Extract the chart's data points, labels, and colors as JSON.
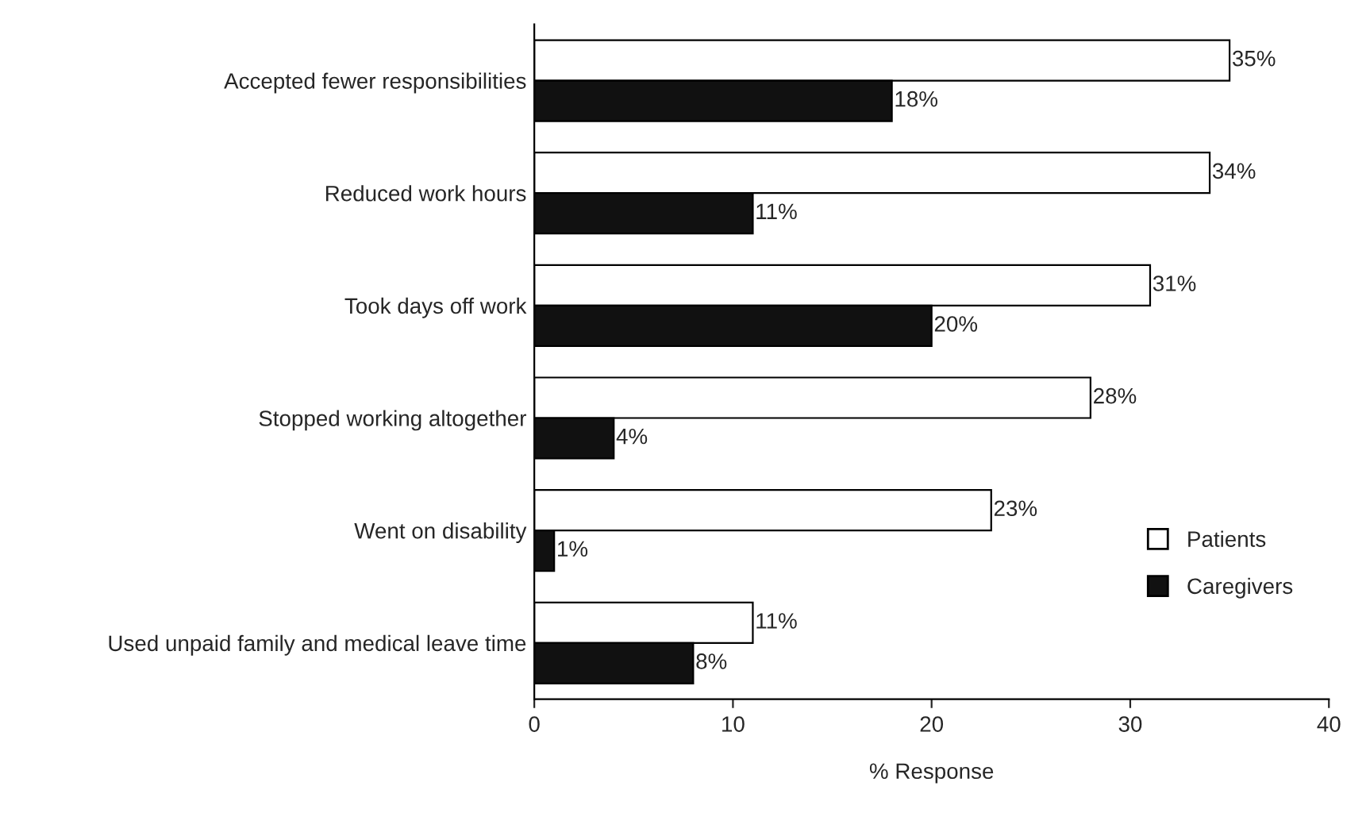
{
  "chart_data": {
    "type": "bar",
    "orientation": "horizontal",
    "xlabel": "% Response",
    "categories": [
      "Accepted fewer responsibilities",
      "Reduced work hours",
      "Took days off work",
      "Stopped working altogether",
      "Went on disability",
      "Used unpaid family and medical leave time"
    ],
    "series": [
      {
        "name": "Patients",
        "color": "#ffffff",
        "values": [
          35,
          34,
          31,
          28,
          23,
          11
        ],
        "value_labels": [
          "35%",
          "34%",
          "31%",
          "28%",
          "23%",
          "11%"
        ]
      },
      {
        "name": "Caregivers",
        "color": "#111111",
        "values": [
          18,
          11,
          20,
          4,
          1,
          8
        ],
        "value_labels": [
          "18%",
          "11%",
          "20%",
          "4%",
          "1%",
          "8%"
        ]
      }
    ],
    "xlim": [
      0,
      40
    ],
    "xticks": [
      0,
      10,
      20,
      30,
      40
    ],
    "grid": false,
    "legend": "bottom right"
  }
}
